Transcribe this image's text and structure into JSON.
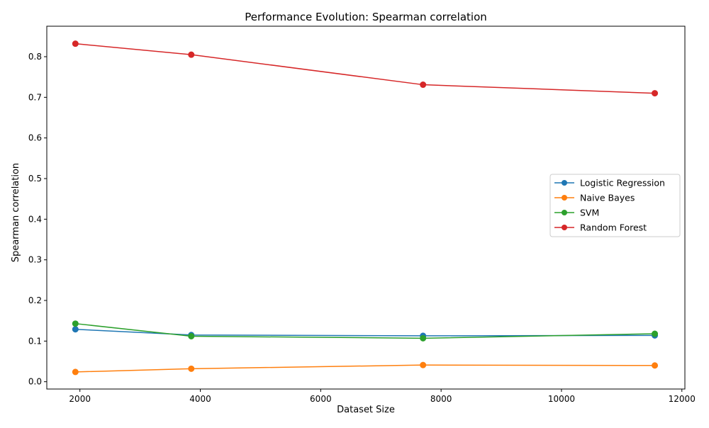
{
  "chart_data": {
    "type": "line",
    "title": "Performance Evolution: Spearman correlation",
    "xlabel": "Dataset Size",
    "ylabel": "Spearman correlation",
    "xlim": [
      1450,
      12050
    ],
    "ylim": [
      -0.018,
      0.875
    ],
    "xticks": [
      2000,
      4000,
      6000,
      8000,
      10000,
      12000
    ],
    "yticks": [
      0.0,
      0.1,
      0.2,
      0.3,
      0.4,
      0.5,
      0.6,
      0.7,
      0.8
    ],
    "grid": false,
    "legend_position": "center-right",
    "x": [
      1925,
      3850,
      7700,
      11550
    ],
    "series": [
      {
        "name": "Logistic Regression",
        "color": "#1f77b4",
        "values": [
          0.129,
          0.115,
          0.113,
          0.114
        ]
      },
      {
        "name": "Naive Bayes",
        "color": "#ff7f0e",
        "values": [
          0.024,
          0.032,
          0.041,
          0.04
        ]
      },
      {
        "name": "SVM",
        "color": "#2ca02c",
        "values": [
          0.143,
          0.112,
          0.107,
          0.118
        ]
      },
      {
        "name": "Random Forest",
        "color": "#d62728",
        "values": [
          0.832,
          0.805,
          0.731,
          0.71
        ]
      }
    ]
  }
}
